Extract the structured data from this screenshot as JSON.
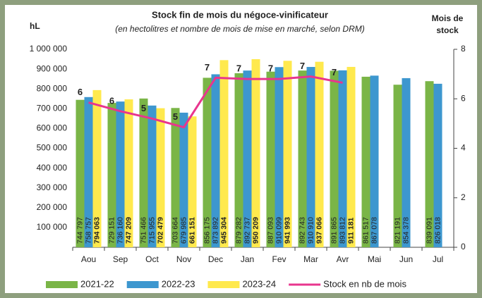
{
  "chart_data": {
    "type": "bar",
    "title": "Stock fin de mois du négoce-vinificateur",
    "subtitle": "(en hectolitres et nombre de mois de mise en marché, selon DRM)",
    "y_label": "hL",
    "y2_label": "Mois de stock",
    "categories": [
      "Aou",
      "Sep",
      "Oct",
      "Nov",
      "Dec",
      "Jan",
      "Fev",
      "Mar",
      "Avr",
      "Mai",
      "Jun",
      "Jul"
    ],
    "ylim": [
      0,
      1000000
    ],
    "yticks": [
      {
        "value": 100000,
        "label": "100 000"
      },
      {
        "value": 200000,
        "label": "200 000"
      },
      {
        "value": 300000,
        "label": "300 000"
      },
      {
        "value": 400000,
        "label": "400 000"
      },
      {
        "value": 500000,
        "label": "500 000"
      },
      {
        "value": 600000,
        "label": "600 000"
      },
      {
        "value": 700000,
        "label": "700 000"
      },
      {
        "value": 800000,
        "label": "800 000"
      },
      {
        "value": 900000,
        "label": "900 000"
      },
      {
        "value": 1000000,
        "label": "1 000 000"
      }
    ],
    "y2lim": [
      0,
      8
    ],
    "y2ticks": [
      0,
      2,
      4,
      6,
      8
    ],
    "series": [
      {
        "name": "2021-22",
        "color": "#7ab547",
        "values": [
          744797,
          729151,
          751466,
          703664,
          856175,
          879282,
          887093,
          892743,
          891865,
          861517,
          821191,
          839091
        ],
        "value_labels": [
          "744 797",
          "729 151",
          "751 466",
          "703 664",
          "856 175",
          "879 282",
          "887 093",
          "892 743",
          "891 865",
          "861 517",
          "821 191",
          "839 091"
        ]
      },
      {
        "name": "2022-23",
        "color": "#3d97cf",
        "values": [
          758757,
          736160,
          715955,
          679985,
          873892,
          892737,
          910099,
          910910,
          893812,
          867078,
          854378,
          826018
        ],
        "value_labels": [
          "758 757",
          "736 160",
          "715 955",
          "679 985",
          "873 892",
          "892 737",
          "910 099",
          "910 910",
          "893 812",
          "867 078",
          "854 378",
          "826 018"
        ]
      },
      {
        "name": "2023-24",
        "color": "#ffe94d",
        "values": [
          794063,
          747209,
          702479,
          661151,
          945304,
          950209,
          941993,
          937066,
          911181,
          null,
          null,
          null
        ],
        "value_labels": [
          "794 063",
          "747 209",
          "702 479",
          "661 151",
          "945 304",
          "950 209",
          "941 993",
          "937 066",
          "911 181",
          null,
          null,
          null
        ]
      },
      {
        "name": "Stock en nb de mois",
        "color": "#e8358e",
        "type": "line",
        "axis": "y2",
        "values": [
          5.85,
          5.5,
          5.2,
          4.85,
          6.85,
          6.8,
          6.8,
          6.9,
          6.65,
          null,
          null,
          null
        ],
        "value_labels": [
          "6",
          "6",
          "5",
          "5",
          "7",
          "7",
          "7",
          "7",
          "7",
          null,
          null,
          null
        ]
      }
    ]
  }
}
